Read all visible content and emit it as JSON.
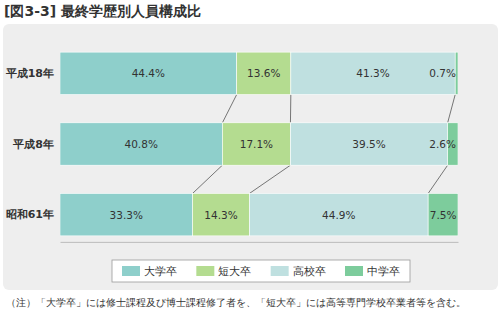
{
  "chart_data": {
    "type": "bar",
    "title": "[図3-3] 最終学歴別人員構成比",
    "orientation": "horizontal",
    "stacked": true,
    "data_labels": true,
    "tick_labels": "y",
    "grid": false,
    "legend": "bottom",
    "xlim": [
      0,
      100
    ],
    "categories": [
      "平成18年",
      "平成8年",
      "昭和61年"
    ],
    "series": [
      {
        "name": "大学卒",
        "color": "#8ecfcb",
        "values": [
          44.4,
          40.8,
          33.3
        ],
        "value_labels": [
          "44.4%",
          "40.8%",
          "33.3%"
        ]
      },
      {
        "name": "短大卒",
        "color": "#b4dc90",
        "values": [
          13.6,
          17.1,
          14.3
        ],
        "value_labels": [
          "13.6%",
          "17.1%",
          "14.3%"
        ]
      },
      {
        "name": "高校卒",
        "color": "#bfe0e0",
        "values": [
          41.3,
          39.5,
          44.9
        ],
        "value_labels": [
          "41.3%",
          "39.5%",
          "44.9%"
        ]
      },
      {
        "name": "中学卒",
        "color": "#7dcc9c",
        "values": [
          0.7,
          2.6,
          7.5
        ],
        "value_labels": [
          "0.7%",
          "2.6%",
          "7.5%"
        ]
      }
    ],
    "annotations": [
      "（注）「大学卒」には修士課程及び博士課程修了者を、「短大卒」には高等専門学校卒業者等を含む。"
    ]
  }
}
